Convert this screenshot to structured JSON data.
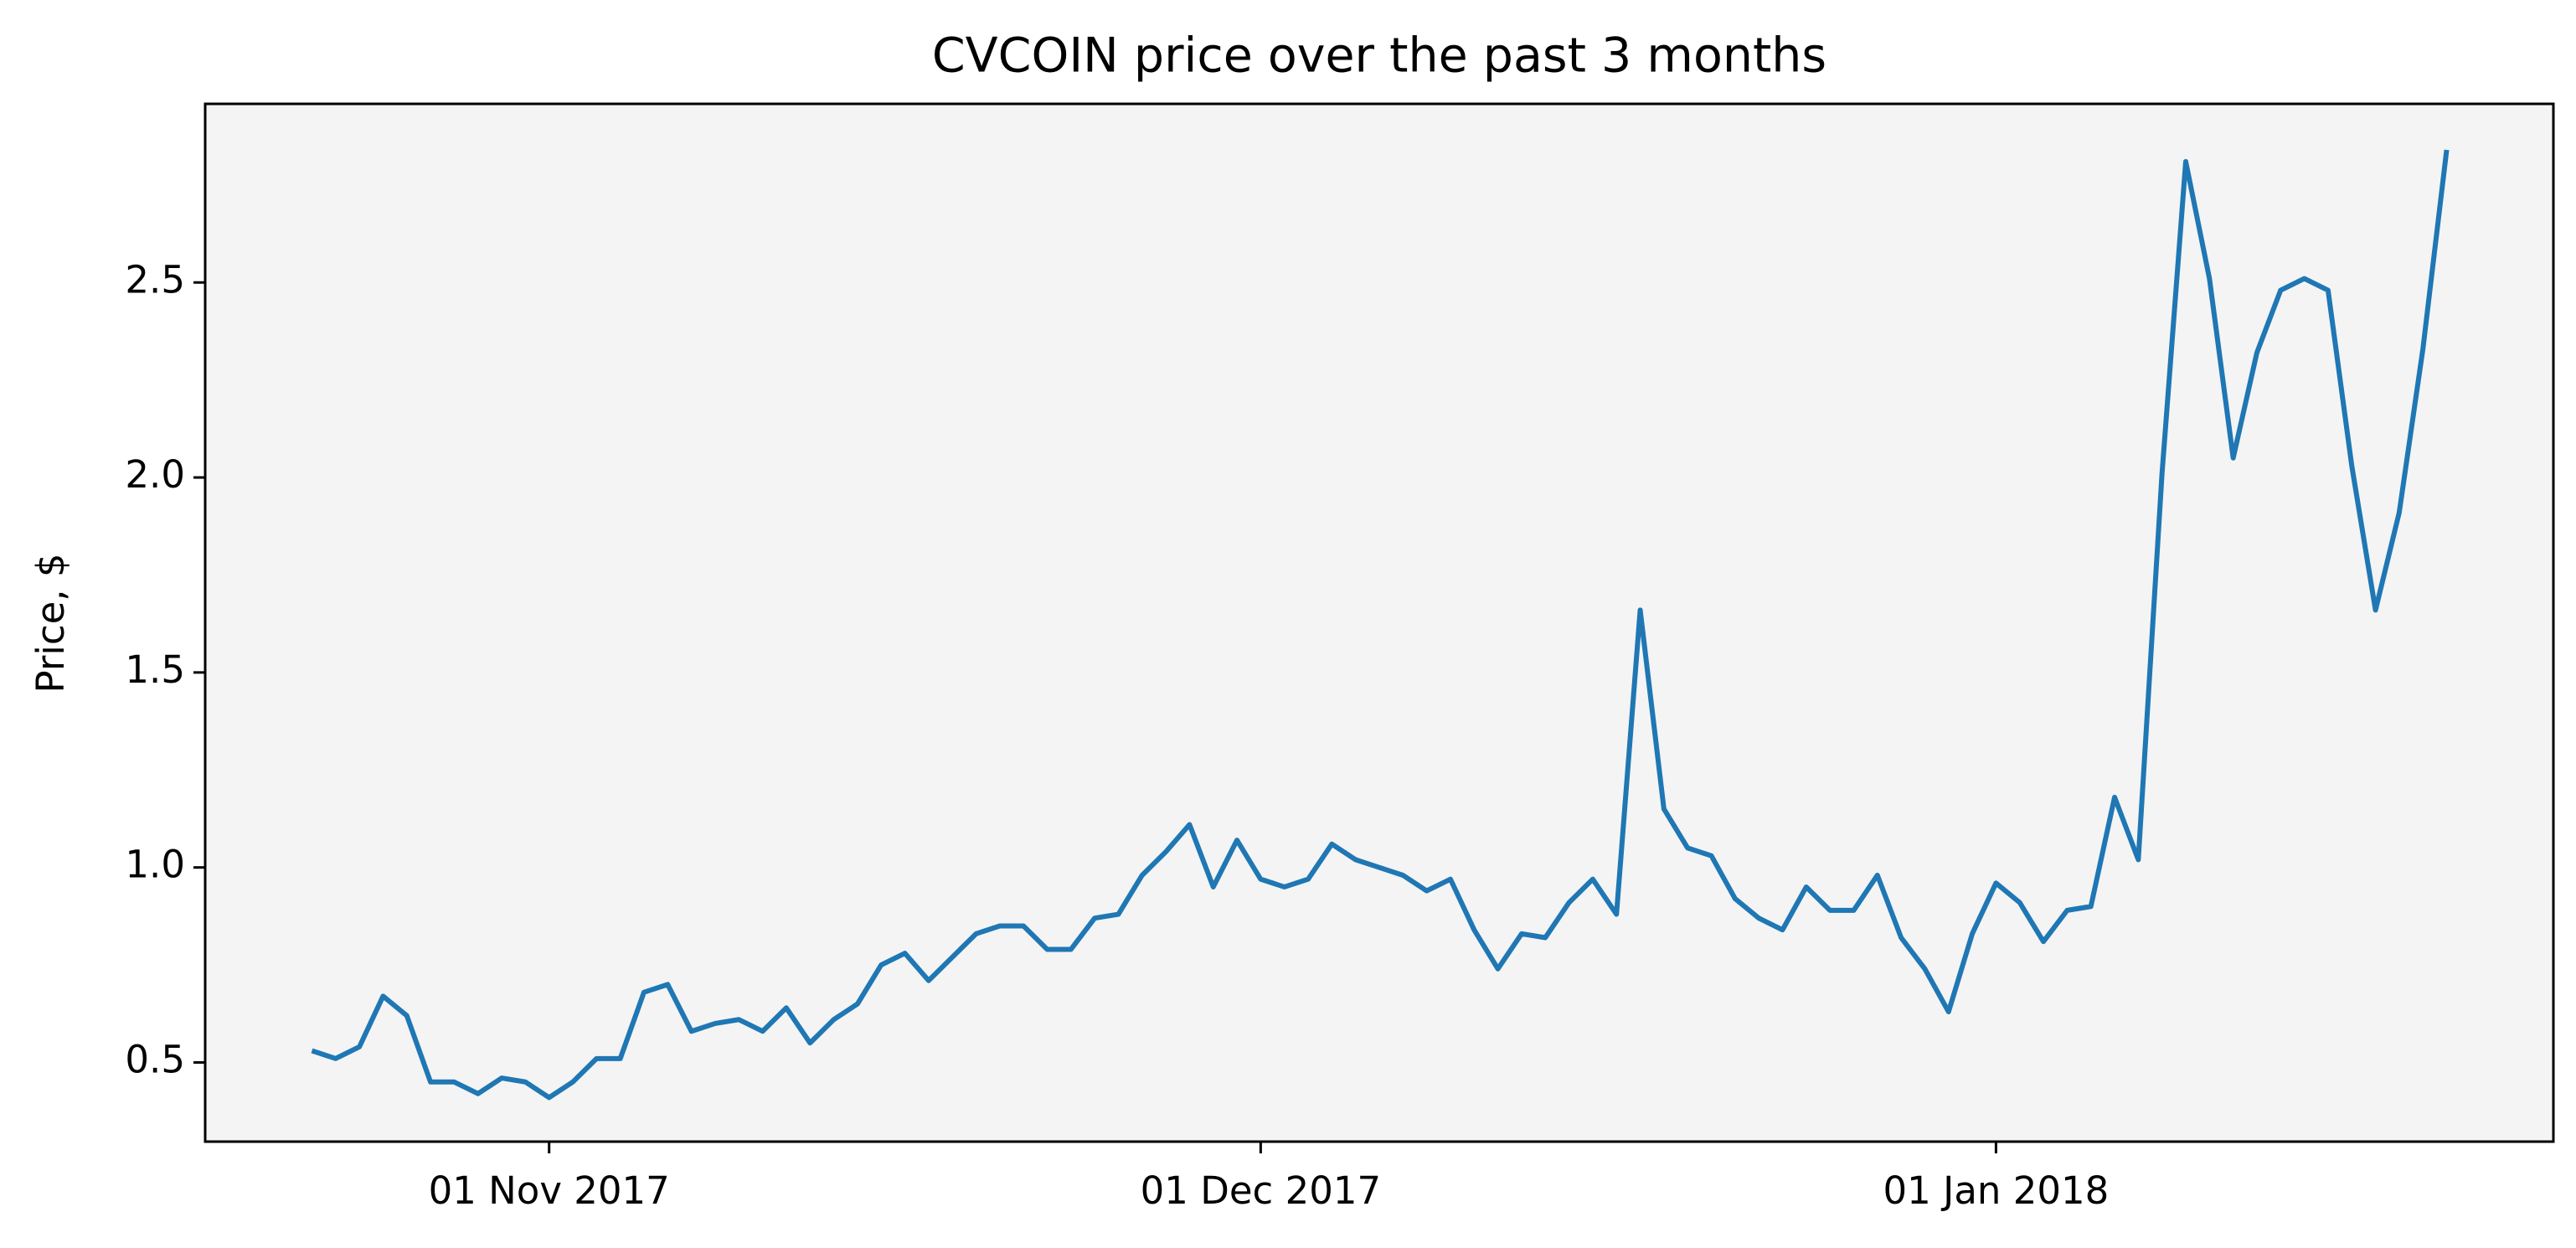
{
  "chart_data": {
    "type": "line",
    "title": "CVCOIN price over the past 3 months",
    "y_label": "Price, $",
    "x": [
      "2017-10-22",
      "2017-10-23",
      "2017-10-24",
      "2017-10-25",
      "2017-10-26",
      "2017-10-27",
      "2017-10-28",
      "2017-10-29",
      "2017-10-30",
      "2017-10-31",
      "2017-11-01",
      "2017-11-02",
      "2017-11-03",
      "2017-11-04",
      "2017-11-05",
      "2017-11-06",
      "2017-11-07",
      "2017-11-08",
      "2017-11-09",
      "2017-11-10",
      "2017-11-11",
      "2017-11-12",
      "2017-11-13",
      "2017-11-14",
      "2017-11-15",
      "2017-11-16",
      "2017-11-17",
      "2017-11-18",
      "2017-11-19",
      "2017-11-20",
      "2017-11-21",
      "2017-11-22",
      "2017-11-23",
      "2017-11-24",
      "2017-11-25",
      "2017-11-26",
      "2017-11-27",
      "2017-11-28",
      "2017-11-29",
      "2017-11-30",
      "2017-12-01",
      "2017-12-02",
      "2017-12-03",
      "2017-12-04",
      "2017-12-05",
      "2017-12-06",
      "2017-12-07",
      "2017-12-08",
      "2017-12-09",
      "2017-12-10",
      "2017-12-11",
      "2017-12-12",
      "2017-12-13",
      "2017-12-14",
      "2017-12-15",
      "2017-12-16",
      "2017-12-17",
      "2017-12-18",
      "2017-12-19",
      "2017-12-20",
      "2017-12-21",
      "2017-12-22",
      "2017-12-23",
      "2017-12-24",
      "2017-12-25",
      "2017-12-26",
      "2017-12-27",
      "2017-12-28",
      "2017-12-29",
      "2017-12-30",
      "2017-12-31",
      "2018-01-01",
      "2018-01-02",
      "2018-01-03",
      "2018-01-04",
      "2018-01-05",
      "2018-01-06",
      "2018-01-07",
      "2018-01-08",
      "2018-01-09",
      "2018-01-10",
      "2018-01-11",
      "2018-01-12",
      "2018-01-13",
      "2018-01-14",
      "2018-01-15",
      "2018-01-16",
      "2018-01-17",
      "2018-01-18",
      "2018-01-19",
      "2018-01-20"
    ],
    "series": [
      {
        "color": "#1f77b4",
        "values": [
          0.53,
          0.51,
          0.54,
          0.67,
          0.62,
          0.45,
          0.45,
          0.42,
          0.46,
          0.45,
          0.41,
          0.45,
          0.51,
          0.51,
          0.68,
          0.7,
          0.58,
          0.6,
          0.61,
          0.58,
          0.64,
          0.55,
          0.61,
          0.65,
          0.75,
          0.78,
          0.71,
          0.77,
          0.83,
          0.85,
          0.85,
          0.79,
          0.79,
          0.87,
          0.88,
          0.98,
          1.04,
          1.11,
          0.95,
          1.07,
          0.97,
          0.95,
          0.97,
          1.06,
          1.02,
          1.0,
          0.98,
          0.94,
          0.97,
          0.84,
          0.74,
          0.83,
          0.82,
          0.91,
          0.97,
          0.88,
          1.66,
          1.15,
          1.05,
          1.03,
          0.92,
          0.87,
          0.84,
          0.95,
          0.89,
          0.89,
          0.98,
          0.82,
          0.74,
          0.63,
          0.83,
          0.96,
          0.91,
          0.81,
          0.89,
          0.9,
          1.18,
          1.02,
          2.01,
          2.81,
          2.51,
          2.05,
          2.32,
          2.48,
          2.51,
          2.48,
          2.03,
          1.66,
          1.91,
          2.33,
          2.84
        ]
      }
    ],
    "xlim": [
      "2017-10-17T12:00",
      "2018-01-24T12:00"
    ],
    "xticks": [
      {
        "value": "2017-11-01",
        "label": "01 Nov 2017"
      },
      {
        "value": "2017-12-01",
        "label": "01 Dec 2017"
      },
      {
        "value": "2018-01-01",
        "label": "01 Jan 2018"
      }
    ],
    "ylim": [
      0.297,
      2.958
    ],
    "yticks": [
      0.5,
      {
        "value": 1,
        "label": "1.0"
      },
      1.5,
      {
        "value": 2,
        "label": "2.0"
      },
      2.5
    ],
    "grid": false,
    "background": "#f4f4f4"
  }
}
